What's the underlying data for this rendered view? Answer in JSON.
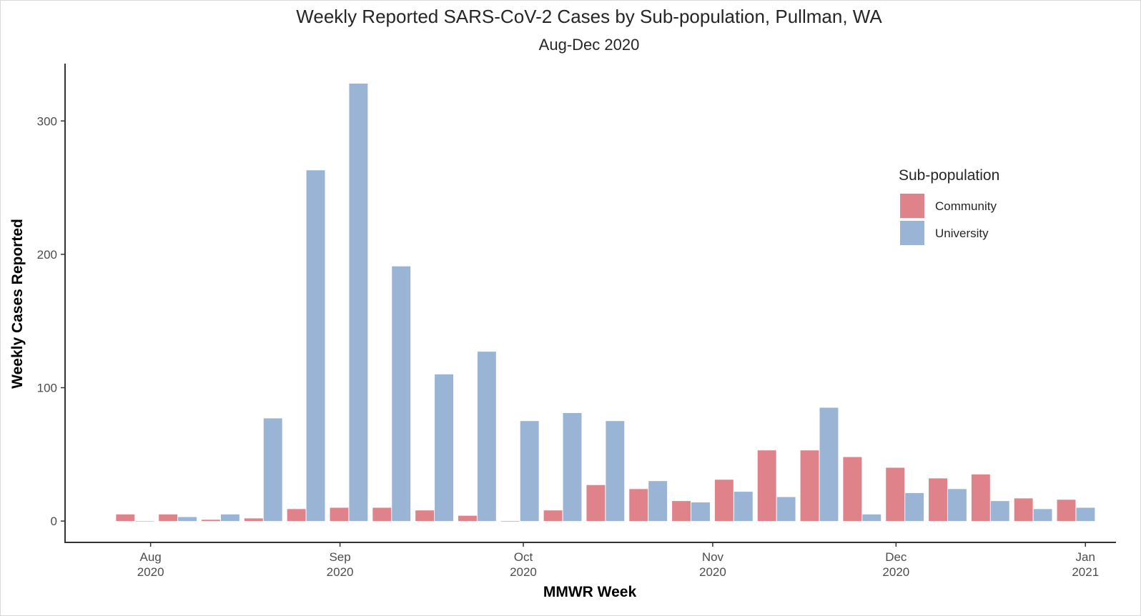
{
  "chart_data": {
    "type": "bar",
    "title": "Weekly Reported SARS-CoV-2 Cases by Sub-population, Pullman, WA",
    "subtitle": "Aug-Dec 2020",
    "xlabel": "MMWR Week",
    "ylabel": "Weekly Cases Reported",
    "ylim": [
      -16,
      343
    ],
    "yticks": [
      0,
      100,
      200,
      300
    ],
    "x_tick_labels": [
      {
        "month": "Aug",
        "year": "2020",
        "date": "2020-08-01"
      },
      {
        "month": "Sep",
        "year": "2020",
        "date": "2020-09-01"
      },
      {
        "month": "Oct",
        "year": "2020",
        "date": "2020-10-01"
      },
      {
        "month": "Nov",
        "year": "2020",
        "date": "2020-11-01"
      },
      {
        "month": "Dec",
        "year": "2020",
        "date": "2020-12-01"
      },
      {
        "month": "Jan",
        "year": "2021",
        "date": "2021-01-01"
      }
    ],
    "xlim": [
      "2020-07-18",
      "2021-01-06"
    ],
    "categories": [
      "2020-07-26",
      "2020-08-02",
      "2020-08-09",
      "2020-08-16",
      "2020-08-23",
      "2020-08-30",
      "2020-09-06",
      "2020-09-13",
      "2020-09-20",
      "2020-09-27",
      "2020-10-04",
      "2020-10-11",
      "2020-10-18",
      "2020-10-25",
      "2020-11-01",
      "2020-11-08",
      "2020-11-15",
      "2020-11-22",
      "2020-11-29",
      "2020-12-06",
      "2020-12-13",
      "2020-12-20",
      "2020-12-27"
    ],
    "series": [
      {
        "name": "Community",
        "color": "#e0828a",
        "values": [
          5,
          5,
          1,
          2,
          9,
          10,
          10,
          8,
          4,
          0,
          8,
          27,
          24,
          15,
          31,
          53,
          53,
          48,
          40,
          32,
          35,
          17,
          16
        ]
      },
      {
        "name": "University",
        "color": "#9ab4d6",
        "values": [
          0,
          3,
          5,
          77,
          263,
          328,
          191,
          110,
          127,
          75,
          81,
          75,
          30,
          14,
          22,
          18,
          85,
          5,
          21,
          24,
          15,
          9,
          10
        ]
      }
    ],
    "legend": {
      "title": "Sub-population",
      "position": "right"
    },
    "grid": false
  }
}
